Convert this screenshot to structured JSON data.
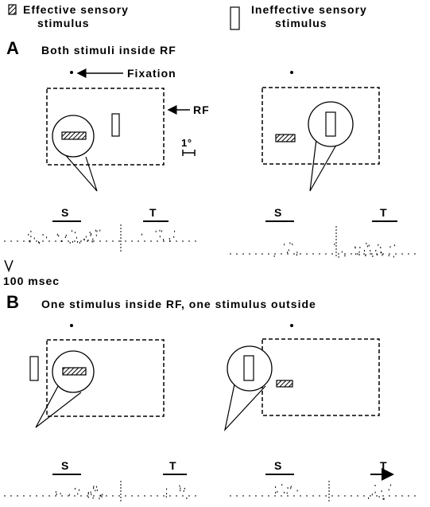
{
  "legend": {
    "effective_line1": "Effective sensory",
    "effective_line2": "stimulus",
    "ineffective_line1": "Ineffective sensory",
    "ineffective_line2": "stimulus"
  },
  "panel_a": {
    "letter": "A",
    "title": "Both stimuli inside RF",
    "fixation_label": "Fixation",
    "rf_label": "RF",
    "scale_label": "1°",
    "s_label_left": "S",
    "t_label_left": "T",
    "s_label_right": "S",
    "t_label_right": "T",
    "time_label": "100 msec"
  },
  "panel_b": {
    "letter": "B",
    "title": "One stimulus inside RF, one stimulus outside",
    "s_label_left": "S",
    "t_label_left": "T",
    "s_label_right": "S",
    "t_label_right": "T"
  }
}
